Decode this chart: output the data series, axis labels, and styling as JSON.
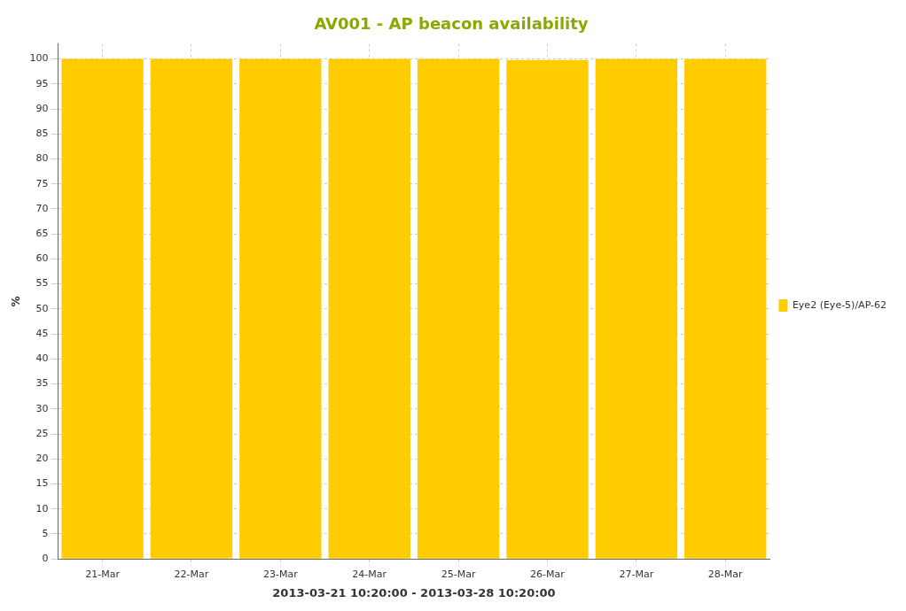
{
  "chart_data": {
    "type": "bar",
    "title": "AV001 - AP beacon availability",
    "xlabel": "2013-03-21 10:20:00 - 2013-03-28 10:20:00",
    "ylabel": "%",
    "categories": [
      "21-Mar",
      "22-Mar",
      "23-Mar",
      "24-Mar",
      "25-Mar",
      "26-Mar",
      "27-Mar",
      "28-Mar"
    ],
    "series": [
      {
        "name": "Eye2 (Eye-5)/AP-62",
        "color": "#ffcc00",
        "values": [
          100,
          100,
          100,
          100,
          100,
          99.8,
          100,
          100
        ]
      }
    ],
    "ylim": [
      0,
      103
    ],
    "yticks": [
      0,
      5,
      10,
      15,
      20,
      25,
      30,
      35,
      40,
      45,
      50,
      55,
      60,
      65,
      70,
      75,
      80,
      85,
      90,
      95,
      100
    ],
    "grid": true,
    "legend": "right"
  }
}
